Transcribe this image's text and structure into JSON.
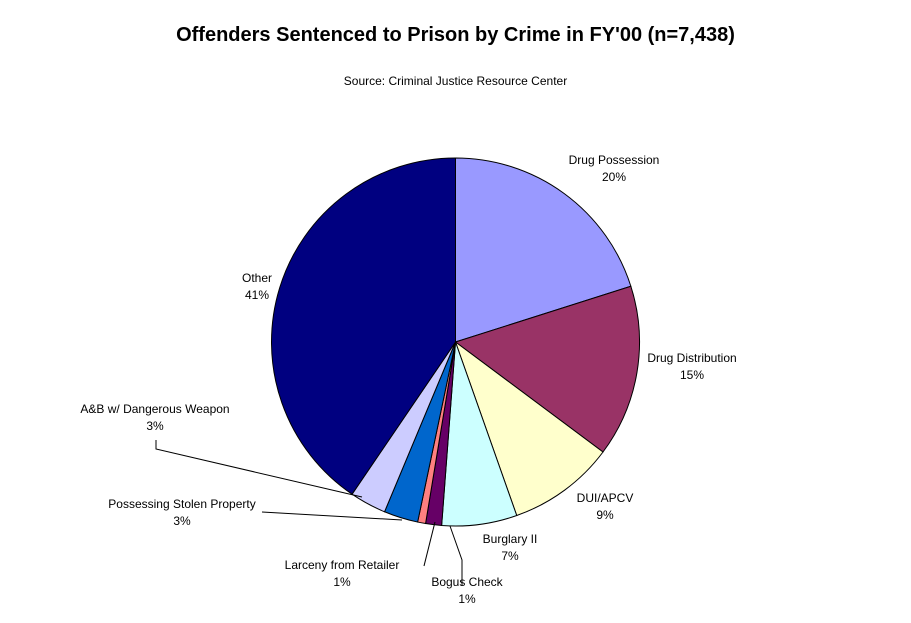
{
  "chart_data": {
    "type": "pie",
    "title": "Offenders Sentenced to Prison by Crime in FY'00 (n=7,438)",
    "subtitle": "Source: Criminal Justice Resource Center",
    "slices": [
      {
        "label": "Drug Possession",
        "value_label": "20%",
        "value": 20.1,
        "color": "#9999ff"
      },
      {
        "label": "Drug Distribution",
        "value_label": "15%",
        "value": 15.1,
        "color": "#993366"
      },
      {
        "label": "DUI/APCV",
        "value_label": "9%",
        "value": 9.4,
        "color": "#ffffcc"
      },
      {
        "label": "Burglary II",
        "value_label": "7%",
        "value": 6.6,
        "color": "#ccffff"
      },
      {
        "label": "Bogus Check",
        "value_label": "1%",
        "value": 1.4,
        "color": "#660066"
      },
      {
        "label": "Larceny from Retailer",
        "value_label": "1%",
        "value": 0.7,
        "color": "#ff8080"
      },
      {
        "label": "Possessing Stolen Property",
        "value_label": "3%",
        "value": 3.0,
        "color": "#0066cc"
      },
      {
        "label": "A&B w/ Dangerous Weapon",
        "value_label": "3%",
        "value": 3.2,
        "color": "#ccccff"
      },
      {
        "label": "Other",
        "value_label": "41%",
        "value": 40.5,
        "color": "#000080"
      }
    ]
  }
}
